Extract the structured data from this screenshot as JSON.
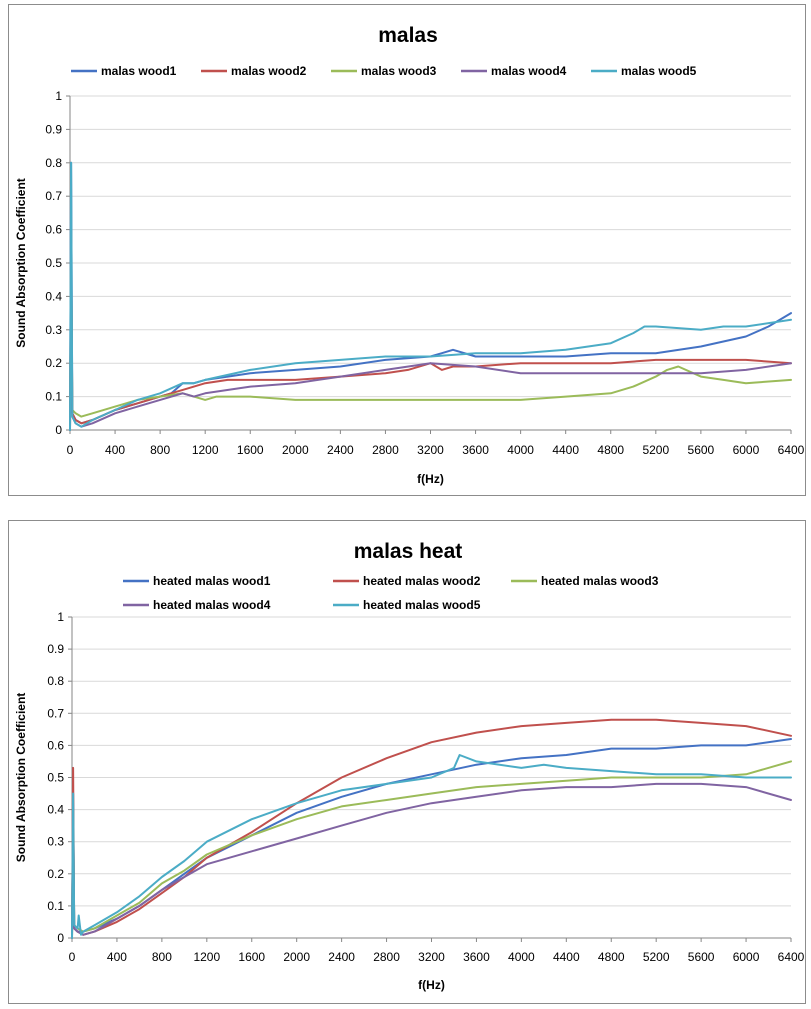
{
  "chart_data": [
    {
      "type": "line",
      "title": "malas",
      "xlabel": "f(Hz)",
      "ylabel": "Sound Absorption Coefficient",
      "xlim": [
        0,
        6400
      ],
      "ylim": [
        0,
        1
      ],
      "x_ticks": [
        "0",
        "400",
        "800",
        "1200",
        "1600",
        "2000",
        "2400",
        "2800",
        "3200",
        "3600",
        "4000",
        "4400",
        "4800",
        "5200",
        "5600",
        "6000",
        "6400"
      ],
      "y_ticks": [
        "0",
        "0.1",
        "0.2",
        "0.3",
        "0.4",
        "0.5",
        "0.6",
        "0.7",
        "0.8",
        "0.9",
        "1"
      ],
      "grid": "horizontal",
      "legend": "top",
      "series": [
        {
          "name": "malas wood1",
          "color": "#4472c4",
          "x": [
            0,
            10,
            20,
            50,
            100,
            200,
            400,
            600,
            800,
            900,
            1000,
            1100,
            1200,
            1400,
            1600,
            2000,
            2400,
            2800,
            3200,
            3300,
            3400,
            3600,
            4000,
            4400,
            4800,
            5200,
            5600,
            6000,
            6200,
            6400
          ],
          "y": [
            0.0,
            0.8,
            0.05,
            0.03,
            0.02,
            0.03,
            0.06,
            0.08,
            0.1,
            0.11,
            0.14,
            0.14,
            0.15,
            0.16,
            0.17,
            0.18,
            0.19,
            0.21,
            0.22,
            0.23,
            0.24,
            0.22,
            0.22,
            0.22,
            0.23,
            0.23,
            0.25,
            0.28,
            0.31,
            0.35
          ]
        },
        {
          "name": "malas wood2",
          "color": "#c0504d",
          "x": [
            0,
            10,
            20,
            50,
            100,
            200,
            400,
            600,
            800,
            1000,
            1200,
            1400,
            1600,
            2000,
            2400,
            2800,
            3000,
            3200,
            3300,
            3400,
            3600,
            4000,
            4400,
            4800,
            5200,
            5600,
            6000,
            6400
          ],
          "y": [
            0.0,
            0.6,
            0.05,
            0.03,
            0.02,
            0.03,
            0.06,
            0.08,
            0.1,
            0.12,
            0.14,
            0.15,
            0.15,
            0.15,
            0.16,
            0.17,
            0.18,
            0.2,
            0.18,
            0.19,
            0.19,
            0.2,
            0.2,
            0.2,
            0.21,
            0.21,
            0.21,
            0.2
          ]
        },
        {
          "name": "malas wood3",
          "color": "#9bbb59",
          "x": [
            0,
            10,
            20,
            50,
            100,
            200,
            400,
            600,
            800,
            1000,
            1100,
            1200,
            1300,
            1600,
            2000,
            2400,
            2800,
            3200,
            3600,
            4000,
            4400,
            4800,
            5000,
            5200,
            5300,
            5400,
            5600,
            5800,
            6000,
            6400
          ],
          "y": [
            0.0,
            0.55,
            0.06,
            0.05,
            0.04,
            0.05,
            0.07,
            0.09,
            0.1,
            0.11,
            0.1,
            0.09,
            0.1,
            0.1,
            0.09,
            0.09,
            0.09,
            0.09,
            0.09,
            0.09,
            0.1,
            0.11,
            0.13,
            0.16,
            0.18,
            0.19,
            0.16,
            0.15,
            0.14,
            0.15
          ]
        },
        {
          "name": "malas wood4",
          "color": "#8064a2",
          "x": [
            0,
            10,
            20,
            50,
            100,
            200,
            400,
            600,
            800,
            1000,
            1100,
            1200,
            1600,
            2000,
            2400,
            2800,
            3200,
            3600,
            4000,
            4400,
            4800,
            5200,
            5600,
            6000,
            6400
          ],
          "y": [
            0.0,
            0.5,
            0.04,
            0.02,
            0.01,
            0.02,
            0.05,
            0.07,
            0.09,
            0.11,
            0.1,
            0.11,
            0.13,
            0.14,
            0.16,
            0.18,
            0.2,
            0.19,
            0.17,
            0.17,
            0.17,
            0.17,
            0.17,
            0.18,
            0.2
          ]
        },
        {
          "name": "malas wood5",
          "color": "#4bacc6",
          "x": [
            0,
            10,
            20,
            50,
            100,
            200,
            400,
            600,
            800,
            1000,
            1100,
            1200,
            1600,
            2000,
            2400,
            2800,
            3200,
            3600,
            4000,
            4400,
            4800,
            5000,
            5100,
            5200,
            5600,
            5800,
            6000,
            6400
          ],
          "y": [
            0.0,
            0.8,
            0.04,
            0.02,
            0.01,
            0.03,
            0.06,
            0.09,
            0.11,
            0.14,
            0.14,
            0.15,
            0.18,
            0.2,
            0.21,
            0.22,
            0.22,
            0.23,
            0.23,
            0.24,
            0.26,
            0.29,
            0.31,
            0.31,
            0.3,
            0.31,
            0.31,
            0.33
          ]
        }
      ]
    },
    {
      "type": "line",
      "title": "malas heat",
      "xlabel": "f(Hz)",
      "ylabel": "Sound Absorption Coefficient",
      "xlim": [
        0,
        6400
      ],
      "ylim": [
        0,
        1
      ],
      "x_ticks": [
        "0",
        "400",
        "800",
        "1200",
        "1600",
        "2000",
        "2400",
        "2800",
        "3200",
        "3600",
        "4000",
        "4400",
        "4800",
        "5200",
        "5600",
        "6000",
        "6400"
      ],
      "y_ticks": [
        "0",
        "0.1",
        "0.2",
        "0.3",
        "0.4",
        "0.5",
        "0.6",
        "0.7",
        "0.8",
        "0.9",
        "1"
      ],
      "grid": "horizontal",
      "legend": "top",
      "series": [
        {
          "name": "heated malas wood1",
          "color": "#4472c4",
          "x": [
            0,
            10,
            20,
            50,
            100,
            200,
            400,
            600,
            800,
            1000,
            1200,
            1600,
            2000,
            2400,
            2800,
            3200,
            3600,
            4000,
            4400,
            4800,
            5200,
            5600,
            6000,
            6400
          ],
          "y": [
            0.0,
            0.45,
            0.03,
            0.02,
            0.02,
            0.03,
            0.06,
            0.1,
            0.15,
            0.2,
            0.25,
            0.32,
            0.39,
            0.44,
            0.48,
            0.51,
            0.54,
            0.56,
            0.57,
            0.59,
            0.59,
            0.6,
            0.6,
            0.62
          ]
        },
        {
          "name": "heated malas wood2",
          "color": "#c0504d",
          "x": [
            0,
            10,
            20,
            50,
            100,
            200,
            400,
            600,
            800,
            1000,
            1200,
            1600,
            2000,
            2400,
            2800,
            3200,
            3600,
            4000,
            4400,
            4800,
            5200,
            5600,
            6000,
            6400
          ],
          "y": [
            0.0,
            0.53,
            0.03,
            0.02,
            0.01,
            0.02,
            0.05,
            0.09,
            0.14,
            0.19,
            0.25,
            0.33,
            0.42,
            0.5,
            0.56,
            0.61,
            0.64,
            0.66,
            0.67,
            0.68,
            0.68,
            0.67,
            0.66,
            0.63
          ]
        },
        {
          "name": "heated malas wood3",
          "color": "#9bbb59",
          "x": [
            0,
            10,
            20,
            50,
            100,
            200,
            400,
            600,
            800,
            1000,
            1200,
            1600,
            2000,
            2400,
            2800,
            3200,
            3600,
            4000,
            4400,
            4800,
            5200,
            5600,
            6000,
            6400
          ],
          "y": [
            0.0,
            0.4,
            0.04,
            0.03,
            0.02,
            0.03,
            0.07,
            0.11,
            0.17,
            0.21,
            0.26,
            0.32,
            0.37,
            0.41,
            0.43,
            0.45,
            0.47,
            0.48,
            0.49,
            0.5,
            0.5,
            0.5,
            0.51,
            0.55
          ]
        },
        {
          "name": "heated malas wood4",
          "color": "#8064a2",
          "x": [
            0,
            10,
            20,
            50,
            100,
            200,
            400,
            600,
            800,
            1000,
            1200,
            1600,
            2000,
            2400,
            2800,
            3200,
            3600,
            4000,
            4400,
            4800,
            5200,
            5600,
            6000,
            6400
          ],
          "y": [
            0.0,
            0.42,
            0.03,
            0.02,
            0.01,
            0.02,
            0.06,
            0.1,
            0.15,
            0.19,
            0.23,
            0.27,
            0.31,
            0.35,
            0.39,
            0.42,
            0.44,
            0.46,
            0.47,
            0.47,
            0.48,
            0.48,
            0.47,
            0.43
          ]
        },
        {
          "name": "heated malas wood5",
          "color": "#4bacc6",
          "x": [
            0,
            10,
            20,
            50,
            60,
            80,
            100,
            200,
            400,
            600,
            800,
            1000,
            1200,
            1600,
            2000,
            2400,
            2800,
            3200,
            3400,
            3450,
            3600,
            4000,
            4200,
            4400,
            4800,
            5200,
            5600,
            6000,
            6400
          ],
          "y": [
            0.0,
            0.45,
            0.04,
            0.03,
            0.07,
            0.01,
            0.02,
            0.04,
            0.08,
            0.13,
            0.19,
            0.24,
            0.3,
            0.37,
            0.42,
            0.46,
            0.48,
            0.5,
            0.53,
            0.57,
            0.55,
            0.53,
            0.54,
            0.53,
            0.52,
            0.51,
            0.51,
            0.5,
            0.5
          ]
        }
      ]
    }
  ]
}
